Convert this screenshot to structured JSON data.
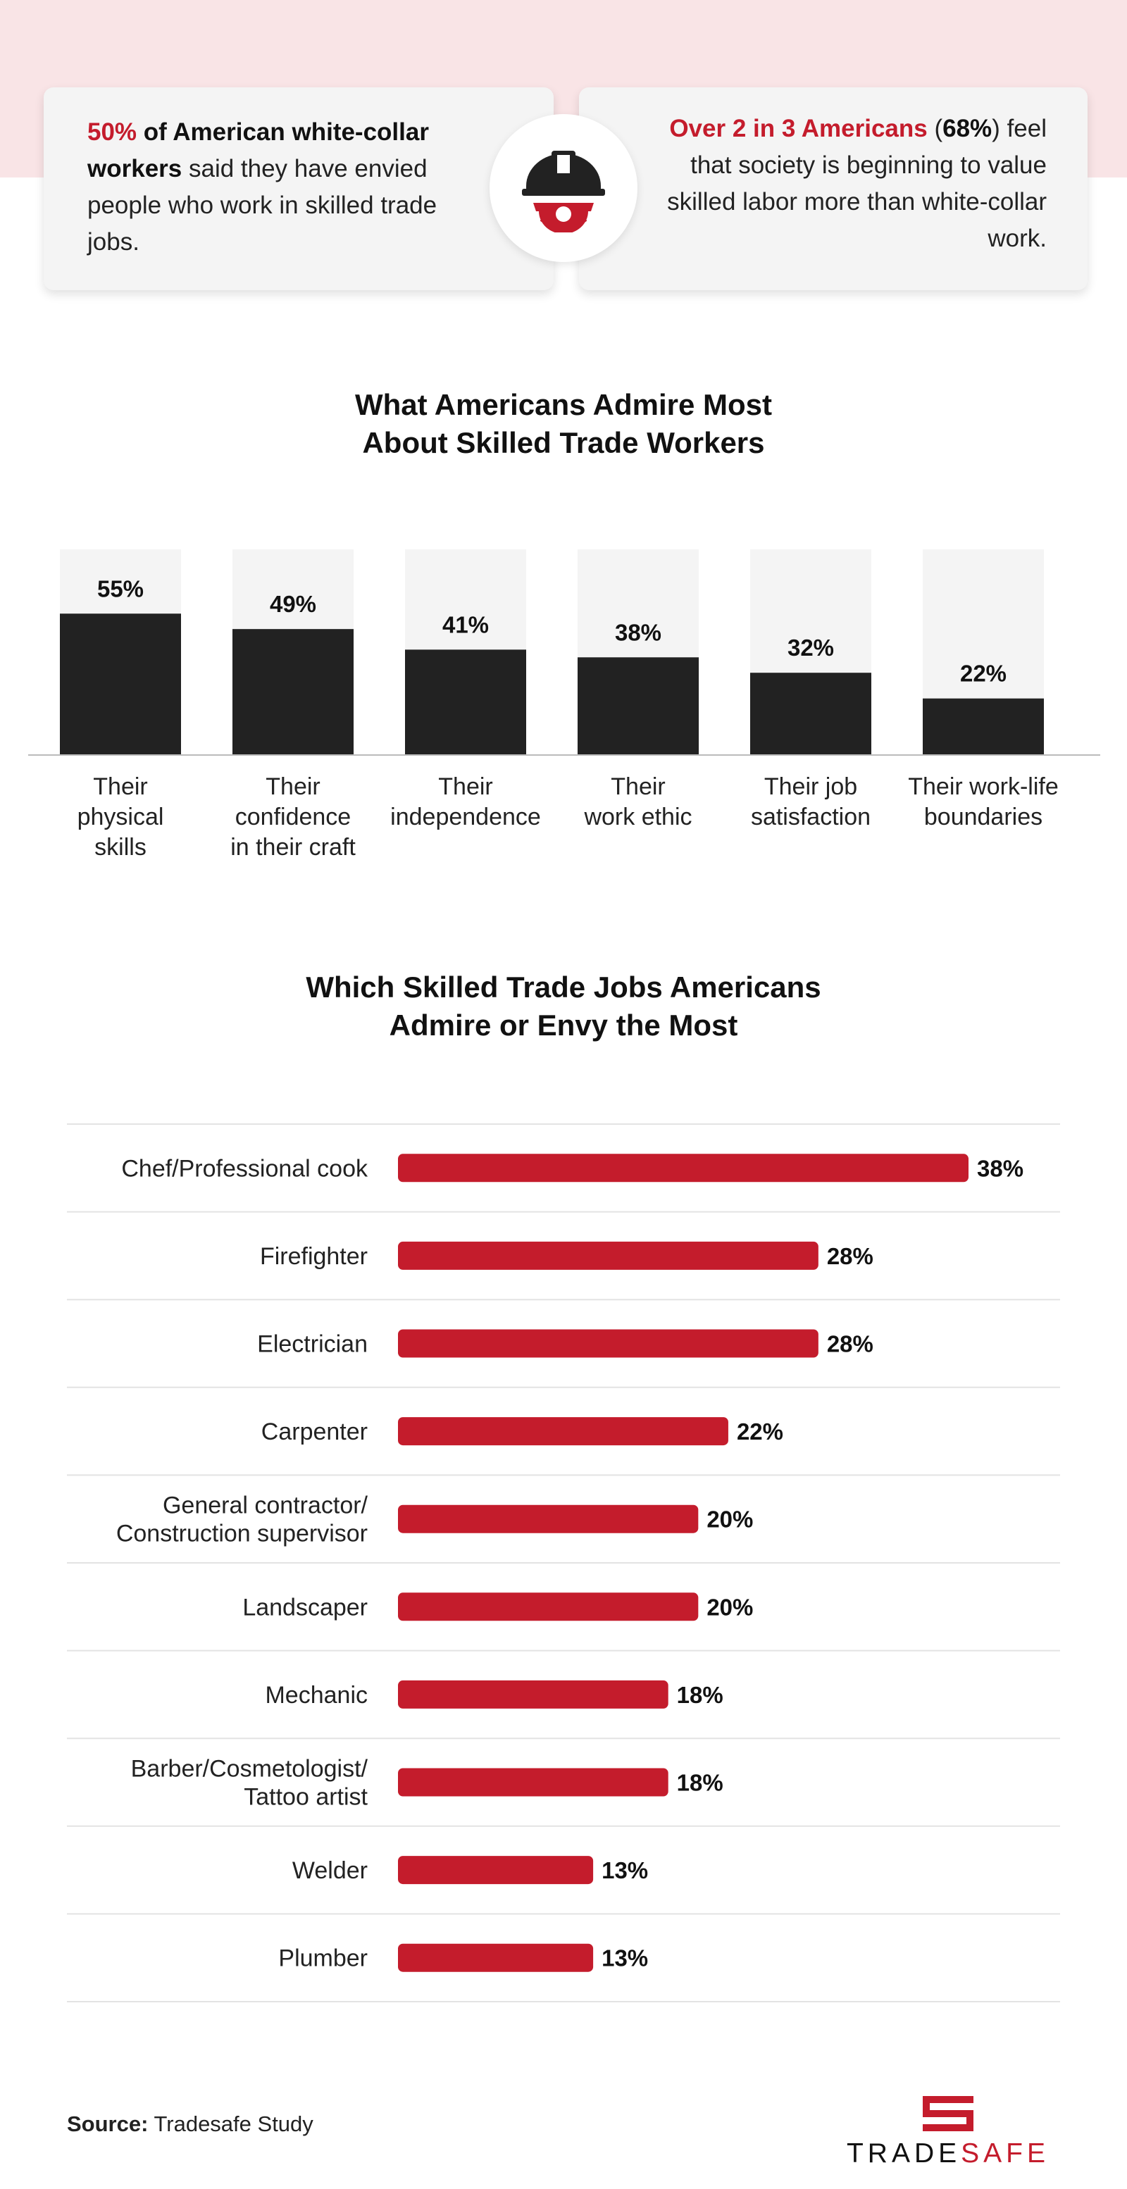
{
  "stat_left": {
    "highlight": "50%",
    "bold_text": " of American white-collar workers",
    "rest_text": " said they have envied people who work in skilled trade jobs."
  },
  "stat_right": {
    "highlight": "Over 2 in 3 Americans",
    "paren_open": " (",
    "bold_pct": "68%",
    "paren_close": ")",
    "rest_text": "feel that society is beginning to value skilled labor more than white-collar work."
  },
  "icons": {
    "center_badge": "hardhat-gear-icon",
    "logo": "tradesafe-logo-icon"
  },
  "colors": {
    "accent_red": "#c41c2c",
    "dark_bar": "#222222",
    "bar_track": "#f4f4f4",
    "top_band": "#f9e4e6"
  },
  "chart_data": [
    {
      "type": "bar",
      "orientation": "vertical",
      "title": "What Americans Admire Most About Skilled Trade Workers",
      "title_lines": [
        "What Americans Admire Most",
        "About Skilled Trade Workers"
      ],
      "categories": [
        "Their physical skills",
        "Their confidence in their craft",
        "Their independence",
        "Their work ethic",
        "Their job satisfaction",
        "Their work-life boundaries"
      ],
      "category_lines": [
        [
          "Their",
          "physical",
          "skills"
        ],
        [
          "Their",
          "confidence",
          "in their craft"
        ],
        [
          "Their",
          "independence"
        ],
        [
          "Their",
          "work ethic"
        ],
        [
          "Their job",
          "satisfaction"
        ],
        [
          "Their work-life",
          "boundaries"
        ]
      ],
      "values": [
        55,
        49,
        41,
        38,
        32,
        22
      ],
      "value_labels": [
        "55%",
        "49%",
        "41%",
        "38%",
        "32%",
        "22%"
      ],
      "ylim": [
        0,
        80
      ],
      "grid": false
    },
    {
      "type": "bar",
      "orientation": "horizontal",
      "title": "Which Skilled Trade Jobs Americans Admire or Envy the Most",
      "title_lines": [
        "Which Skilled Trade Jobs Americans",
        "Admire or Envy the Most"
      ],
      "categories": [
        "Chef/Professional cook",
        "Firefighter",
        "Electrician",
        "Carpenter",
        "General contractor/ Construction supervisor",
        "Landscaper",
        "Mechanic",
        "Barber/Cosmetologist/ Tattoo artist",
        "Welder",
        "Plumber"
      ],
      "category_lines": [
        [
          "Chef/Professional cook"
        ],
        [
          "Firefighter"
        ],
        [
          "Electrician"
        ],
        [
          "Carpenter"
        ],
        [
          "General contractor/",
          "Construction supervisor"
        ],
        [
          "Landscaper"
        ],
        [
          "Mechanic"
        ],
        [
          "Barber/Cosmetologist/",
          "Tattoo artist"
        ],
        [
          "Welder"
        ],
        [
          "Plumber"
        ]
      ],
      "values": [
        38,
        28,
        28,
        22,
        20,
        20,
        18,
        18,
        13,
        13
      ],
      "value_labels": [
        "38%",
        "28%",
        "28%",
        "22%",
        "20%",
        "20%",
        "18%",
        "18%",
        "13%",
        "13%"
      ],
      "xlim": [
        0,
        38
      ],
      "grid": false
    }
  ],
  "source": {
    "label": "Source:",
    "text": " Tradesafe Study"
  },
  "brand": {
    "part1": "TRADE",
    "part2": "SAFE"
  }
}
